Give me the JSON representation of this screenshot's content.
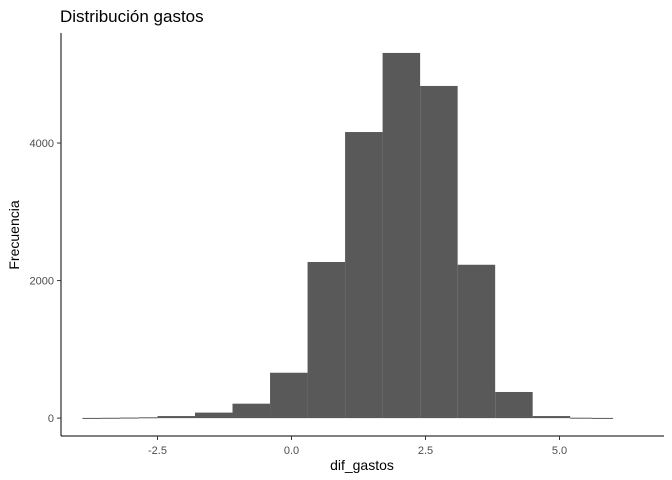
{
  "chart_data": {
    "type": "bar",
    "title": "Distribución gastos",
    "xlabel": "dif_gastos",
    "ylabel": "Frecuencia",
    "bar_color": "#595959",
    "xlim": [
      -4.3,
      6.95
    ],
    "ylim": [
      -260,
      5600
    ],
    "x_ticks": [
      -2.5,
      0.0,
      2.5,
      5.0
    ],
    "x_tick_labels": [
      "-2.5",
      "0.0",
      "2.5",
      "5.0"
    ],
    "y_ticks": [
      0,
      2000,
      4000
    ],
    "y_tick_labels": [
      "0",
      "2000",
      "4000"
    ],
    "bins": [
      {
        "start": -3.9,
        "end": -3.55,
        "value": 3
      },
      {
        "start": -3.55,
        "end": -3.2,
        "value": 5
      },
      {
        "start": -3.2,
        "end": -2.85,
        "value": 8
      },
      {
        "start": -2.85,
        "end": -2.5,
        "value": 12
      },
      {
        "start": -2.5,
        "end": -1.8,
        "value": 30
      },
      {
        "start": -1.8,
        "end": -1.1,
        "value": 80
      },
      {
        "start": -1.1,
        "end": -0.4,
        "value": 210
      },
      {
        "start": -0.4,
        "end": 0.3,
        "value": 660
      },
      {
        "start": 0.3,
        "end": 1.0,
        "value": 2270
      },
      {
        "start": 1.0,
        "end": 1.7,
        "value": 4160
      },
      {
        "start": 1.7,
        "end": 2.4,
        "value": 5310
      },
      {
        "start": 2.4,
        "end": 3.1,
        "value": 4830
      },
      {
        "start": 3.1,
        "end": 3.8,
        "value": 2230
      },
      {
        "start": 3.8,
        "end": 4.5,
        "value": 380
      },
      {
        "start": 4.5,
        "end": 5.2,
        "value": 30
      },
      {
        "start": 5.2,
        "end": 5.6,
        "value": 6
      },
      {
        "start": 5.6,
        "end": 6.0,
        "value": 3
      }
    ]
  }
}
